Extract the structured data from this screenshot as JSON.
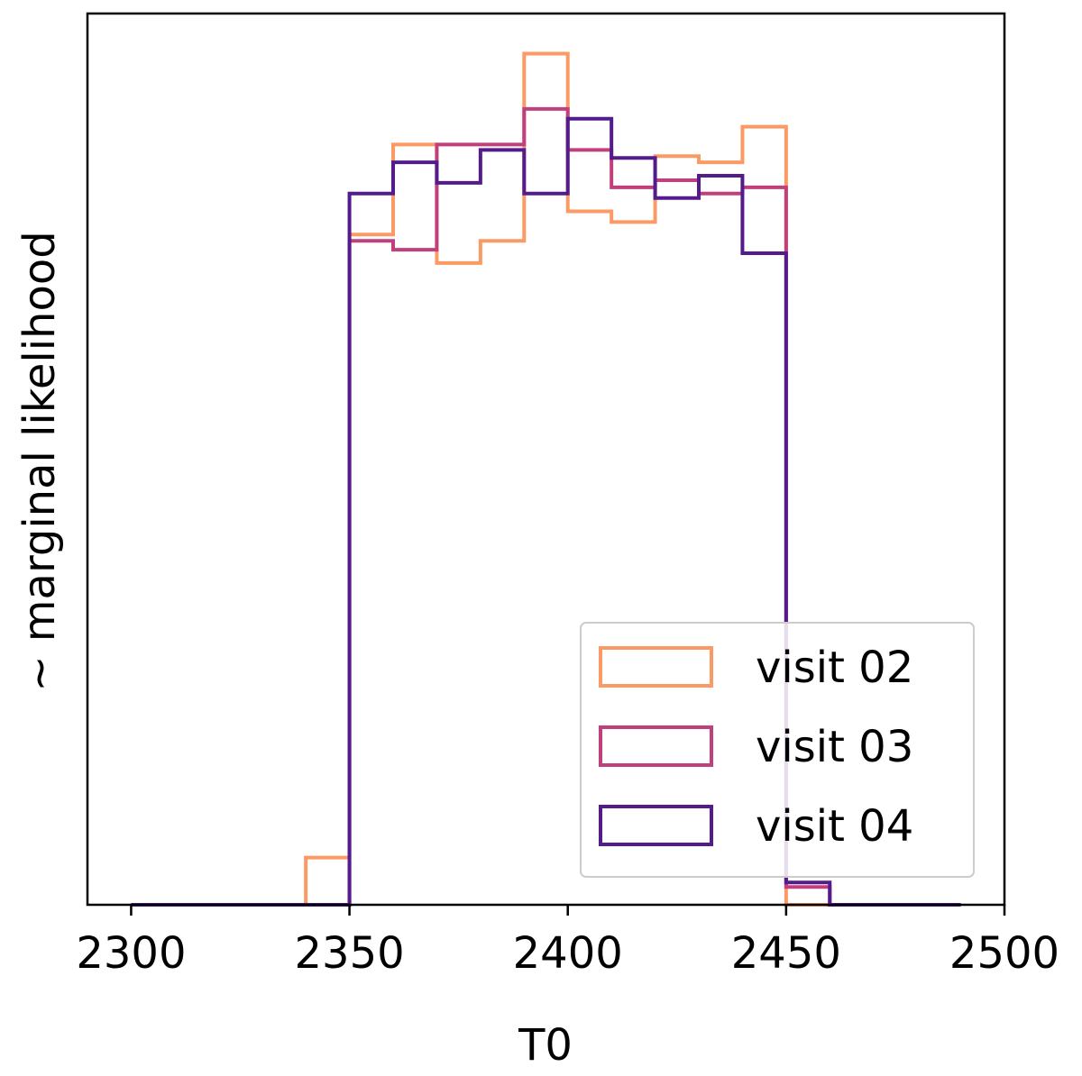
{
  "chart_data": {
    "type": "histogram-step",
    "title": "",
    "xlabel": "T0",
    "ylabel": "~ marginal likelihood",
    "xlim": [
      2290,
      2500
    ],
    "ylim": [
      0,
      1.0
    ],
    "x_ticks": [
      2300,
      2350,
      2400,
      2450,
      2500
    ],
    "x_tick_labels": [
      "2300",
      "2350",
      "2400",
      "2450",
      "2500"
    ],
    "y_ticks_visible": false,
    "grid": false,
    "legend_position": "lower-right",
    "bin_edges": [
      2300,
      2310,
      2320,
      2330,
      2340,
      2350,
      2360,
      2370,
      2380,
      2390,
      2400,
      2410,
      2420,
      2430,
      2440,
      2450,
      2460,
      2470,
      2480,
      2490
    ],
    "series": [
      {
        "name": "visit 02",
        "color": "#fc9a66",
        "values": [
          0,
          0,
          0,
          0,
          0.053,
          0.752,
          0.853,
          0.72,
          0.745,
          0.955,
          0.778,
          0.766,
          0.84,
          0.833,
          0.873,
          0,
          0,
          0,
          0
        ]
      },
      {
        "name": "visit 03",
        "color": "#c0407b",
        "values": [
          0,
          0,
          0,
          0,
          0,
          0.745,
          0.735,
          0.853,
          0.853,
          0.893,
          0.847,
          0.805,
          0.813,
          0.798,
          0.805,
          0.02,
          0,
          0,
          0
        ]
      },
      {
        "name": "visit 04",
        "color": "#541b8c",
        "values": [
          0,
          0,
          0,
          0,
          0,
          0.798,
          0.833,
          0.81,
          0.847,
          0.798,
          0.882,
          0.838,
          0.793,
          0.818,
          0.731,
          0.025,
          0,
          0,
          0
        ]
      }
    ]
  }
}
